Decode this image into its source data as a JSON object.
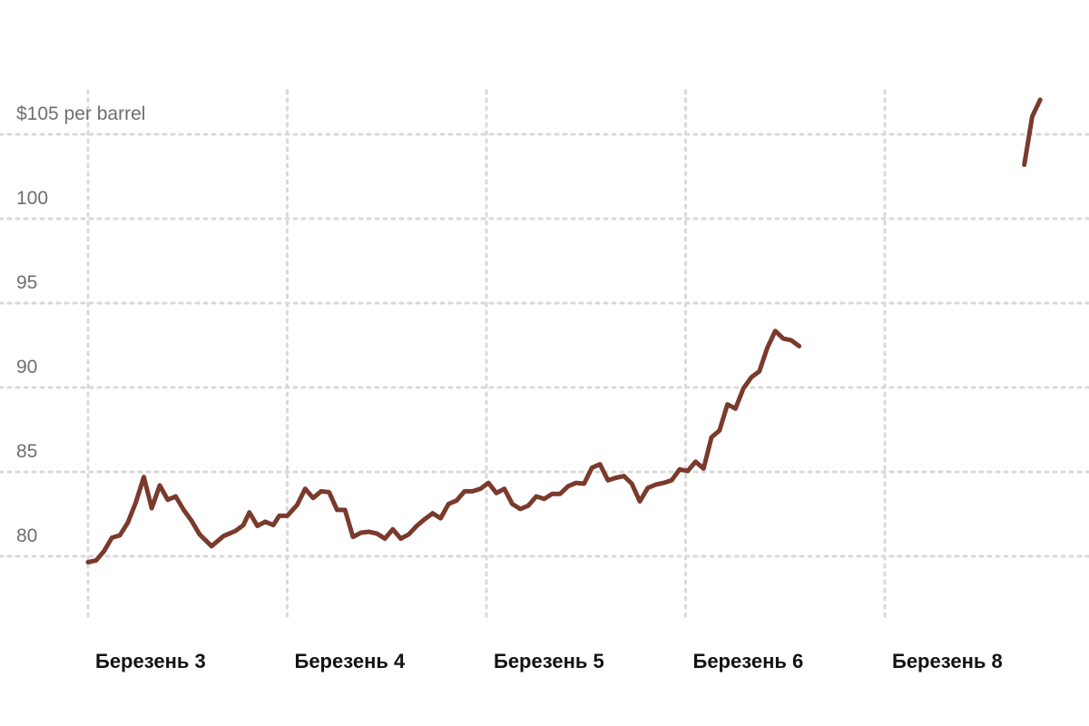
{
  "chart_data": {
    "type": "line",
    "title": "",
    "xlabel": "",
    "ylabel": "",
    "ylim": [
      75.5,
      107.5
    ],
    "y_ticks": [
      80,
      85,
      90,
      95,
      100,
      105
    ],
    "y_tick_labels": [
      "80",
      "85",
      "90",
      "95",
      "100",
      "$105 per barrel"
    ],
    "x_categories": [
      "Березень 3",
      "Березень 4",
      "Березень 5",
      "Березень 6",
      "Березень 8"
    ],
    "x_range": [
      0,
      5
    ],
    "grid": true,
    "legend": "none",
    "colors": {
      "line": "#7a3a2c",
      "grid": "#d9d9d9",
      "tick_text": "#6f6f6f",
      "x_label_text": "#121212"
    },
    "series": [
      {
        "segments": [
          [
            [
              0.0,
              79.65
            ],
            [
              0.04,
              79.75
            ],
            [
              0.08,
              80.3
            ],
            [
              0.12,
              81.1
            ],
            [
              0.16,
              81.25
            ],
            [
              0.2,
              82.0
            ],
            [
              0.24,
              83.2
            ],
            [
              0.28,
              84.7
            ],
            [
              0.32,
              82.85
            ],
            [
              0.36,
              84.2
            ],
            [
              0.4,
              83.35
            ],
            [
              0.44,
              83.55
            ],
            [
              0.48,
              82.75
            ],
            [
              0.52,
              82.1
            ],
            [
              0.56,
              81.3
            ],
            [
              0.62,
              80.6
            ],
            [
              0.68,
              81.2
            ],
            [
              0.74,
              81.5
            ],
            [
              0.78,
              81.85
            ],
            [
              0.81,
              82.6
            ],
            [
              0.85,
              81.8
            ],
            [
              0.89,
              82.05
            ],
            [
              0.93,
              81.85
            ],
            [
              0.96,
              82.4
            ],
            [
              1.0,
              82.4
            ],
            [
              1.05,
              83.05
            ],
            [
              1.09,
              84.0
            ],
            [
              1.13,
              83.45
            ],
            [
              1.17,
              83.85
            ],
            [
              1.21,
              83.8
            ],
            [
              1.25,
              82.75
            ],
            [
              1.29,
              82.75
            ],
            [
              1.33,
              81.15
            ],
            [
              1.37,
              81.4
            ],
            [
              1.41,
              81.45
            ],
            [
              1.45,
              81.35
            ],
            [
              1.49,
              81.05
            ],
            [
              1.53,
              81.6
            ],
            [
              1.57,
              81.05
            ],
            [
              1.61,
              81.3
            ],
            [
              1.65,
              81.8
            ],
            [
              1.69,
              82.2
            ],
            [
              1.73,
              82.55
            ],
            [
              1.77,
              82.25
            ],
            [
              1.81,
              83.1
            ],
            [
              1.85,
              83.3
            ],
            [
              1.89,
              83.85
            ],
            [
              1.93,
              83.85
            ],
            [
              1.97,
              84.0
            ],
            [
              2.01,
              84.35
            ],
            [
              2.05,
              83.75
            ],
            [
              2.09,
              84.0
            ],
            [
              2.13,
              83.1
            ],
            [
              2.17,
              82.8
            ],
            [
              2.21,
              83.0
            ],
            [
              2.25,
              83.55
            ],
            [
              2.29,
              83.4
            ],
            [
              2.33,
              83.7
            ],
            [
              2.37,
              83.7
            ],
            [
              2.41,
              84.15
            ],
            [
              2.45,
              84.35
            ],
            [
              2.49,
              84.3
            ],
            [
              2.53,
              85.25
            ],
            [
              2.57,
              85.45
            ],
            [
              2.61,
              84.5
            ],
            [
              2.65,
              84.65
            ],
            [
              2.69,
              84.75
            ],
            [
              2.73,
              84.3
            ],
            [
              2.77,
              83.25
            ],
            [
              2.81,
              84.05
            ],
            [
              2.85,
              84.25
            ],
            [
              2.89,
              84.35
            ],
            [
              2.93,
              84.5
            ],
            [
              2.97,
              85.15
            ],
            [
              3.01,
              85.05
            ],
            [
              3.05,
              85.6
            ],
            [
              3.09,
              85.2
            ],
            [
              3.13,
              87.05
            ],
            [
              3.17,
              87.45
            ],
            [
              3.21,
              89.0
            ],
            [
              3.25,
              88.75
            ],
            [
              3.29,
              89.95
            ],
            [
              3.33,
              90.6
            ],
            [
              3.37,
              90.95
            ],
            [
              3.41,
              92.35
            ],
            [
              3.45,
              93.35
            ],
            [
              3.49,
              92.9
            ],
            [
              3.53,
              92.8
            ],
            [
              3.57,
              92.45
            ]
          ],
          [
            [
              4.7,
              103.2
            ],
            [
              4.74,
              106.05
            ],
            [
              4.78,
              107.05
            ]
          ]
        ]
      }
    ]
  }
}
